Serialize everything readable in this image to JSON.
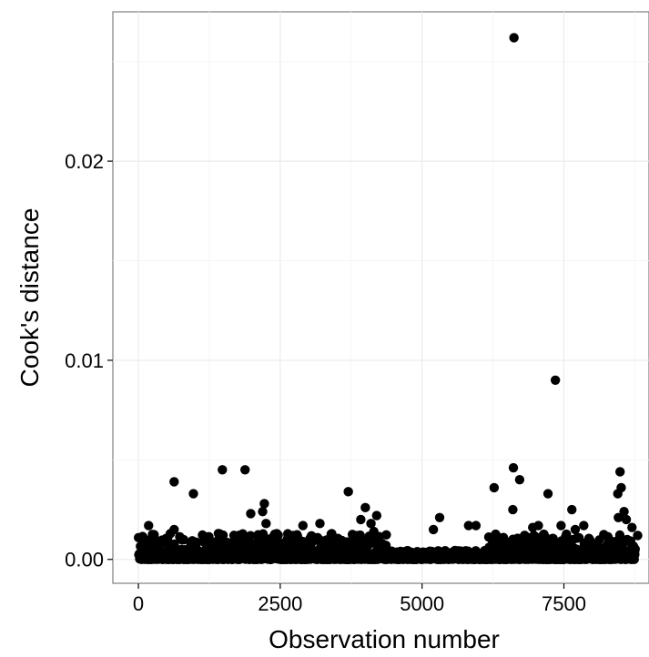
{
  "chart_data": {
    "type": "scatter",
    "title": "",
    "xlabel": "Observation number",
    "ylabel": "Cook's distance",
    "xlim": [
      -450,
      9000
    ],
    "ylim": [
      -0.0012,
      0.0275
    ],
    "x_ticks": [
      0,
      2500,
      5000,
      7500
    ],
    "x_tick_labels": [
      "0",
      "2500",
      "5000",
      "7500"
    ],
    "y_ticks": [
      0.0,
      0.01,
      0.02
    ],
    "y_tick_labels": [
      "0.00",
      "0.01",
      "0.02"
    ],
    "grid": true,
    "background": "#ffffff",
    "grid_color": "#ebebeb",
    "point_color": "#000000",
    "series": [
      {
        "x": [
          6620,
          7350,
          6610,
          8490,
          1480,
          1880,
          630,
          6720,
          970,
          7220,
          3700,
          6270,
          8510,
          8450,
          6600,
          2220,
          7640,
          4000,
          8560,
          1980,
          2190,
          8600,
          4200,
          5310,
          2250,
          3920,
          4100,
          7850,
          8460,
          5820,
          5200,
          6950,
          7450,
          4150,
          1410,
          180,
          630,
          2900,
          3200,
          4620,
          5950,
          7050,
          7700,
          8700,
          8800
        ],
        "y": [
          0.0262,
          0.009,
          0.0046,
          0.0044,
          0.0045,
          0.0045,
          0.0039,
          0.004,
          0.0033,
          0.0033,
          0.0034,
          0.0036,
          0.0036,
          0.0033,
          0.0025,
          0.0028,
          0.0025,
          0.0026,
          0.0024,
          0.0023,
          0.0024,
          0.002,
          0.0022,
          0.0021,
          0.0018,
          0.002,
          0.0018,
          0.0017,
          0.0021,
          0.0017,
          0.0015,
          0.0016,
          0.0017,
          0.0014,
          0.0013,
          0.0017,
          0.0015,
          0.0017,
          0.0018,
          0.0004,
          0.0017,
          0.0017,
          0.0015,
          0.0016,
          0.0012
        ]
      }
    ]
  }
}
